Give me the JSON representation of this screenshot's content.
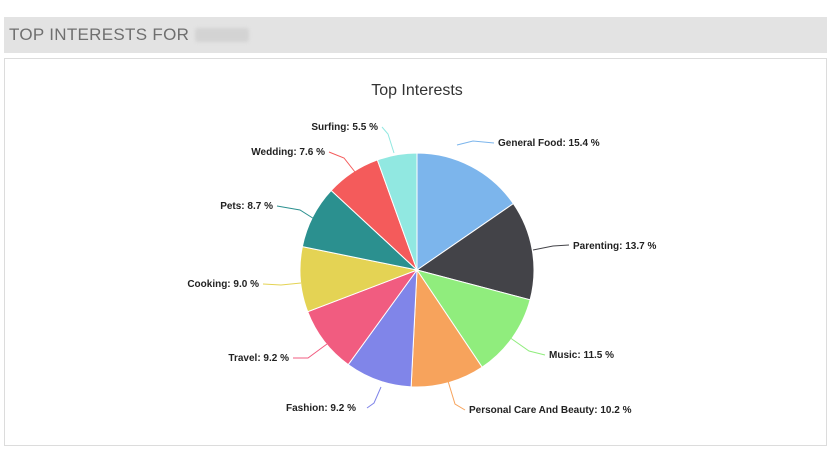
{
  "header": {
    "title": "TOP INTERESTS FOR",
    "title_suffix_redacted": true
  },
  "chart_data": {
    "type": "pie",
    "title": "Top Interests",
    "categories": [
      "General Food",
      "Parenting",
      "Music",
      "Personal Care And Beauty",
      "Fashion",
      "Travel",
      "Cooking",
      "Pets",
      "Wedding",
      "Surfing"
    ],
    "values": [
      15.4,
      13.7,
      11.5,
      10.2,
      9.2,
      9.2,
      9.0,
      8.7,
      7.6,
      5.5
    ],
    "labels": [
      "General Food: 15.4 %",
      "Parenting: 13.7 %",
      "Music: 11.5 %",
      "Personal Care And Beauty: 10.2 %",
      "Fashion: 9.2 %",
      "Travel: 9.2 %",
      "Cooking: 9.0 %",
      "Pets: 8.7 %",
      "Wedding: 7.6 %",
      "Surfing: 5.5 %"
    ],
    "colors": [
      "#7cb5ec",
      "#434348",
      "#90ed7d",
      "#f7a35c",
      "#8085e9",
      "#f15c80",
      "#e4d354",
      "#2b908f",
      "#f45b5b",
      "#91e8e1"
    ],
    "start_angle_deg": 0,
    "direction": "clockwise",
    "legend": "none",
    "data_labels": "outside-with-connectors"
  }
}
